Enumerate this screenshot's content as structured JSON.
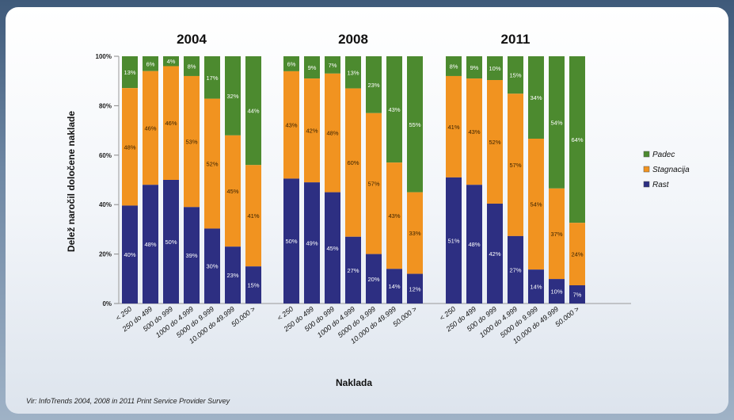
{
  "chart_data": {
    "type": "bar",
    "stacked": true,
    "percent_stacked": true,
    "ylabel": "Delež naročil določene naklade",
    "xlabel": "Naklada",
    "y_ticks": [
      "0%",
      "20%",
      "40%",
      "60%",
      "80%",
      "100%"
    ],
    "ylim": [
      0,
      100
    ],
    "legend_position": "right",
    "legend": [
      {
        "name": "Padec",
        "color": "#4c8a2f"
      },
      {
        "name": "Stagnacija",
        "color": "#f19320"
      },
      {
        "name": "Rast",
        "color": "#2d2f82"
      }
    ],
    "colors": {
      "Rast": "#2d2f82",
      "Stagnacija": "#f19320",
      "Padec": "#4c8a2f"
    },
    "categories": [
      "< 250",
      "250 do 499",
      "500 do 999",
      "1000 do 4.999",
      "5000 do 9.999",
      "10.000 do 49.999",
      "50.000 >"
    ],
    "groups": [
      {
        "title": "2004",
        "rast": [
          40,
          48,
          50,
          39,
          30,
          23,
          15
        ],
        "stagnacija": [
          48,
          46,
          46,
          53,
          52,
          45,
          41
        ],
        "padec": [
          13,
          6,
          4,
          8,
          17,
          32,
          44
        ],
        "labels": {
          "rast": [
            "40%",
            "48%",
            "50%",
            "39%",
            "30%",
            "23%",
            "15%"
          ],
          "stagnacija": [
            "48%",
            "46%",
            "46%",
            "53%",
            "52%",
            "45%",
            "41%"
          ],
          "padec": [
            "13%",
            "6%",
            "4%",
            "8%",
            "17%",
            "32%",
            "44%"
          ]
        }
      },
      {
        "title": "2008",
        "rast": [
          50,
          49,
          45,
          27,
          20,
          14,
          12
        ],
        "stagnacija": [
          43,
          42,
          48,
          60,
          57,
          43,
          33
        ],
        "padec": [
          6,
          9,
          7,
          13,
          23,
          43,
          55
        ],
        "labels": {
          "rast": [
            "50%",
            "49%",
            "45%",
            "27%",
            "20%",
            "14%",
            "12%"
          ],
          "stagnacija": [
            "43%",
            "42%",
            "48%",
            "60%",
            "57%",
            "43%",
            "33%"
          ],
          "padec": [
            "6%",
            "9%",
            "7%",
            "13%",
            "23%",
            "43%",
            "55%"
          ]
        }
      },
      {
        "title": "2011",
        "rast": [
          51,
          48,
          42,
          27,
          14,
          10,
          7
        ],
        "stagnacija": [
          41,
          43,
          52,
          57,
          54,
          37,
          24
        ],
        "padec": [
          8,
          9,
          10,
          15,
          34,
          54,
          64
        ],
        "labels": {
          "rast": [
            "51%",
            "48%",
            "42%",
            "27%",
            "14%",
            "10%",
            "7%"
          ],
          "stagnacija": [
            "41%",
            "43%",
            "52%",
            "57%",
            "54%",
            "37%",
            "24%"
          ],
          "padec": [
            "8%",
            "9%",
            "10%",
            "15%",
            "34%",
            "54%",
            "64%"
          ]
        }
      }
    ]
  },
  "source": "Vir: InfoTrends 2004, 2008 in 2011 Print Service Provider Survey"
}
